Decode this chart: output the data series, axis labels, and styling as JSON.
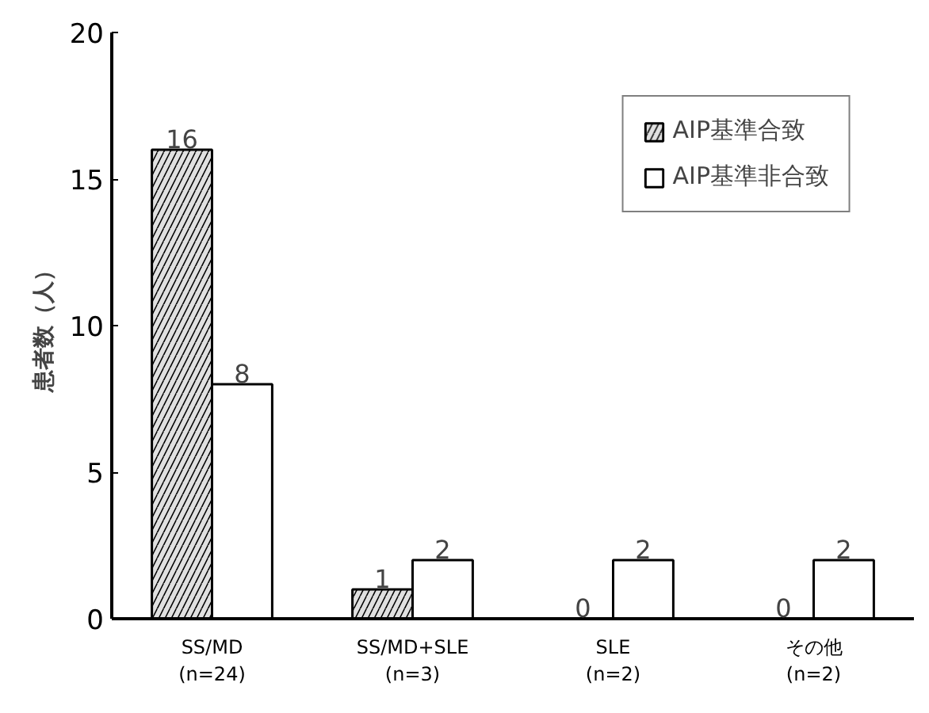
{
  "chart_data": {
    "type": "bar",
    "ylabel": "患者数（人）",
    "categories": [
      "SS/MD\n(n=24)",
      "SS/MD+SLE\n(n=3)",
      "SLE\n(n=2)",
      "その他\n(n=2)"
    ],
    "series": [
      {
        "name": "AIP基準合致",
        "color": "#e0e0e0",
        "values": [
          16,
          1,
          0,
          0
        ]
      },
      {
        "name": "AIP基準非合致",
        "color": "#ffffff",
        "values": [
          8,
          2,
          2,
          2
        ]
      }
    ],
    "ylim": [
      0,
      20
    ],
    "yticks": [
      0,
      5,
      10,
      15,
      20
    ],
    "data_labels": true,
    "grid": false,
    "legend": "top right"
  }
}
